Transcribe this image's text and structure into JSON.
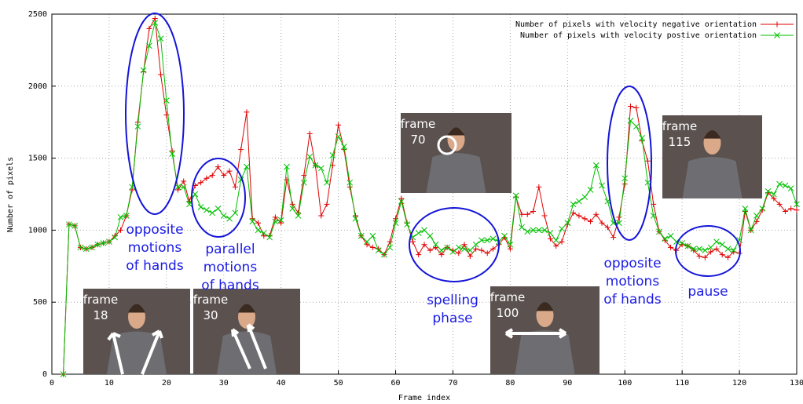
{
  "chart_data": {
    "type": "line",
    "xlabel": "Frame index",
    "ylabel": "Number of pixels",
    "xlim": [
      0,
      130
    ],
    "xticks": [
      0,
      10,
      20,
      30,
      40,
      50,
      60,
      70,
      80,
      90,
      100,
      110,
      120,
      130
    ],
    "ylim": [
      0,
      2500
    ],
    "yticks": [
      0,
      500,
      1000,
      1500,
      2000,
      2500
    ],
    "grid": true,
    "legend": "upper right",
    "x": [
      2,
      3,
      4,
      5,
      6,
      7,
      8,
      9,
      10,
      11,
      12,
      13,
      14,
      15,
      16,
      17,
      18,
      19,
      20,
      21,
      22,
      23,
      24,
      25,
      26,
      27,
      28,
      29,
      30,
      31,
      32,
      33,
      34,
      35,
      36,
      37,
      38,
      39,
      40,
      41,
      42,
      43,
      44,
      45,
      46,
      47,
      48,
      49,
      50,
      51,
      52,
      53,
      54,
      55,
      56,
      57,
      58,
      59,
      60,
      61,
      62,
      63,
      64,
      65,
      66,
      67,
      68,
      69,
      70,
      71,
      72,
      73,
      74,
      75,
      76,
      77,
      78,
      79,
      80,
      81,
      82,
      83,
      84,
      85,
      86,
      87,
      88,
      89,
      90,
      91,
      92,
      93,
      94,
      95,
      96,
      97,
      98,
      99,
      100,
      101,
      102,
      103,
      104,
      105,
      106,
      107,
      108,
      109,
      110,
      111,
      112,
      113,
      114,
      115,
      116,
      117,
      118,
      119,
      120,
      121,
      122,
      123,
      124,
      125,
      126,
      127,
      128,
      129,
      130
    ],
    "series": [
      {
        "name": "Number of pixels with velocity negative orientation",
        "color": "#e00000",
        "marker": "+",
        "values": [
          0,
          1040,
          1030,
          880,
          870,
          880,
          900,
          910,
          920,
          960,
          1000,
          1100,
          1280,
          1750,
          2100,
          2400,
          2470,
          2080,
          1800,
          1550,
          1280,
          1340,
          1200,
          1310,
          1330,
          1360,
          1380,
          1440,
          1380,
          1410,
          1300,
          1560,
          1820,
          1080,
          1050,
          960,
          960,
          1090,
          1050,
          1350,
          1180,
          1120,
          1380,
          1670,
          1450,
          1100,
          1180,
          1450,
          1730,
          1560,
          1300,
          1100,
          960,
          900,
          880,
          870,
          830,
          920,
          1080,
          1220,
          1050,
          920,
          830,
          900,
          860,
          880,
          830,
          880,
          860,
          840,
          900,
          820,
          870,
          860,
          840,
          870,
          900,
          950,
          870,
          1230,
          1110,
          1110,
          1130,
          1300,
          1100,
          940,
          890,
          920,
          1040,
          1120,
          1100,
          1080,
          1060,
          1110,
          1050,
          1020,
          950,
          1090,
          1320,
          1860,
          1850,
          1620,
          1480,
          1180,
          990,
          930,
          880,
          860,
          900,
          890,
          860,
          820,
          810,
          850,
          870,
          830,
          810,
          850,
          840,
          1130,
          1000,
          1060,
          1140,
          1260,
          1220,
          1180,
          1130,
          1150,
          1140
        ]
      },
      {
        "name": "Number of pixels with velocity postive orientation",
        "color": "#00c000",
        "marker": "x",
        "values": [
          0,
          1040,
          1030,
          880,
          870,
          880,
          900,
          910,
          920,
          950,
          1090,
          1100,
          1300,
          1720,
          2110,
          2280,
          2440,
          2330,
          1900,
          1530,
          1300,
          1300,
          1180,
          1250,
          1160,
          1140,
          1120,
          1150,
          1100,
          1080,
          1120,
          1350,
          1440,
          1060,
          1000,
          980,
          950,
          1060,
          1070,
          1440,
          1150,
          1100,
          1330,
          1510,
          1450,
          1430,
          1330,
          1520,
          1650,
          1580,
          1330,
          1080,
          960,
          920,
          960,
          860,
          830,
          880,
          1050,
          1200,
          1040,
          950,
          980,
          1000,
          960,
          900,
          860,
          880,
          850,
          880,
          870,
          860,
          900,
          930,
          930,
          940,
          920,
          960,
          900,
          1240,
          1020,
          990,
          1000,
          1000,
          1000,
          980,
          930,
          1010,
          1050,
          1180,
          1200,
          1230,
          1280,
          1450,
          1310,
          1200,
          1050,
          1050,
          1360,
          1760,
          1720,
          1640,
          1330,
          1100,
          990,
          940,
          960,
          920,
          910,
          890,
          870,
          870,
          860,
          880,
          920,
          900,
          870,
          860,
          930,
          1150,
          1000,
          1100,
          1150,
          1270,
          1250,
          1320,
          1310,
          1290,
          1180
        ]
      }
    ]
  },
  "annotations": [
    [
      "opposite",
      "motions",
      "of hands"
    ],
    [
      "parallel",
      "motions",
      "of hands"
    ],
    [
      "spelling",
      "phase"
    ],
    [
      "opposite",
      "motions",
      "of hands"
    ],
    [
      "pause"
    ]
  ],
  "insets": [
    [
      "frame",
      "18"
    ],
    [
      "frame",
      "30"
    ],
    [
      "frame",
      "70"
    ],
    [
      "frame",
      "100"
    ],
    [
      "frame",
      "115"
    ]
  ]
}
